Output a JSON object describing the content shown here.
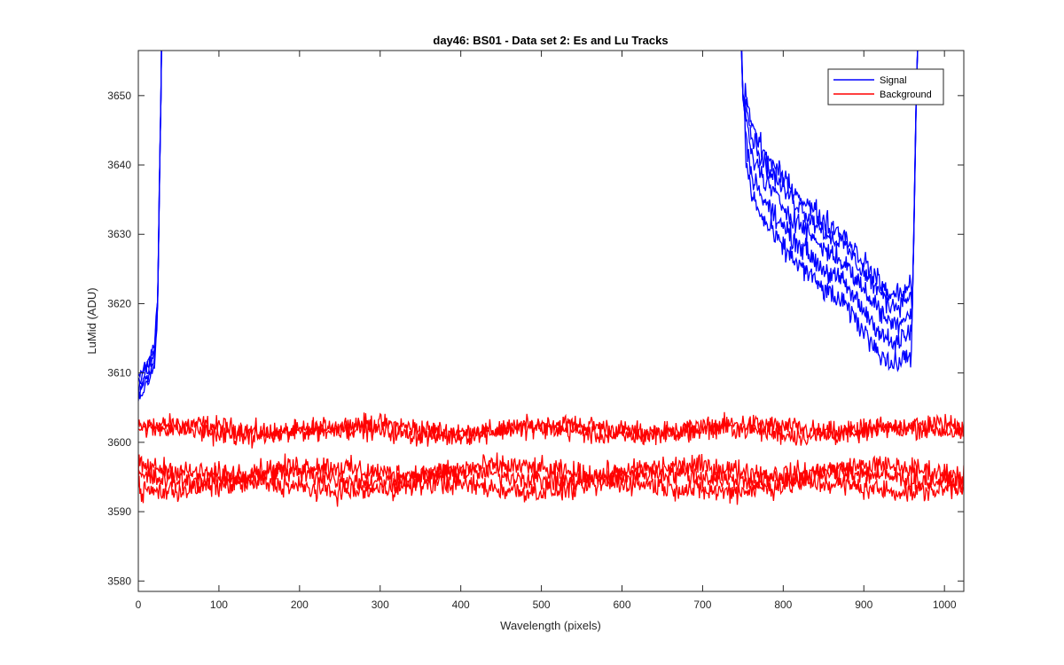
{
  "chart_data": {
    "type": "line",
    "title": "day46: BS01 - Data set 2: Es and Lu Tracks",
    "xlabel": "Wavelength (pixels)",
    "ylabel": "LuMid (ADU)",
    "xlim": [
      0,
      1024
    ],
    "ylim": [
      3578.5,
      3656.5
    ],
    "xticks": [
      0,
      100,
      200,
      300,
      400,
      500,
      600,
      700,
      800,
      900,
      1000
    ],
    "yticks": [
      3580,
      3590,
      3600,
      3610,
      3620,
      3630,
      3640,
      3650
    ],
    "grid": false,
    "box": true,
    "legend": {
      "position": "top-right",
      "entries": [
        {
          "label": "Signal",
          "color": "#0000ff"
        },
        {
          "label": "Background",
          "color": "#ff0000"
        }
      ]
    },
    "series_groups": [
      {
        "name": "Signal",
        "color": "#0000ff",
        "note": "several overlapping noisy traces; only portions inside the axis range are visible",
        "segments": [
          {
            "x": [
              0,
              5,
              10,
              15,
              20,
              24,
              26,
              28,
              30
            ],
            "y": [
              3608,
              3609,
              3610,
              3611,
              3613,
              3620,
              3635,
              3650,
              3670
            ]
          },
          {
            "x": [
              745,
              750,
              760,
              775,
              800,
              825,
              850,
              875,
              900,
              920,
              935,
              950,
              960,
              962,
              965,
              970
            ],
            "y": [
              3670,
              3650,
              3642,
              3638,
              3634,
              3631,
              3628,
              3626,
              3622,
              3619,
              3617,
              3618,
              3619,
              3630,
              3650,
              3670
            ]
          }
        ],
        "band": [
          {
            "x": 760,
            "low": 3630,
            "high": 3646
          },
          {
            "x": 800,
            "low": 3627,
            "high": 3640
          },
          {
            "x": 850,
            "low": 3622,
            "high": 3634
          },
          {
            "x": 900,
            "low": 3616,
            "high": 3628
          },
          {
            "x": 940,
            "low": 3611,
            "high": 3623
          },
          {
            "x": 960,
            "low": 3615,
            "high": 3621
          }
        ]
      },
      {
        "name": "Background",
        "color": "#ff0000",
        "note": "five noisy flat traces across full range",
        "traces": [
          {
            "mean": 3602,
            "noise": 1.4
          },
          {
            "mean": 3601.5,
            "noise": 1.4
          },
          {
            "mean": 3596,
            "noise": 1.5
          },
          {
            "mean": 3595,
            "noise": 1.5
          },
          {
            "mean": 3593.5,
            "noise": 1.5
          }
        ],
        "x_range": [
          0,
          1024
        ],
        "y_extent": [
          3589,
          3606.5
        ]
      }
    ]
  }
}
